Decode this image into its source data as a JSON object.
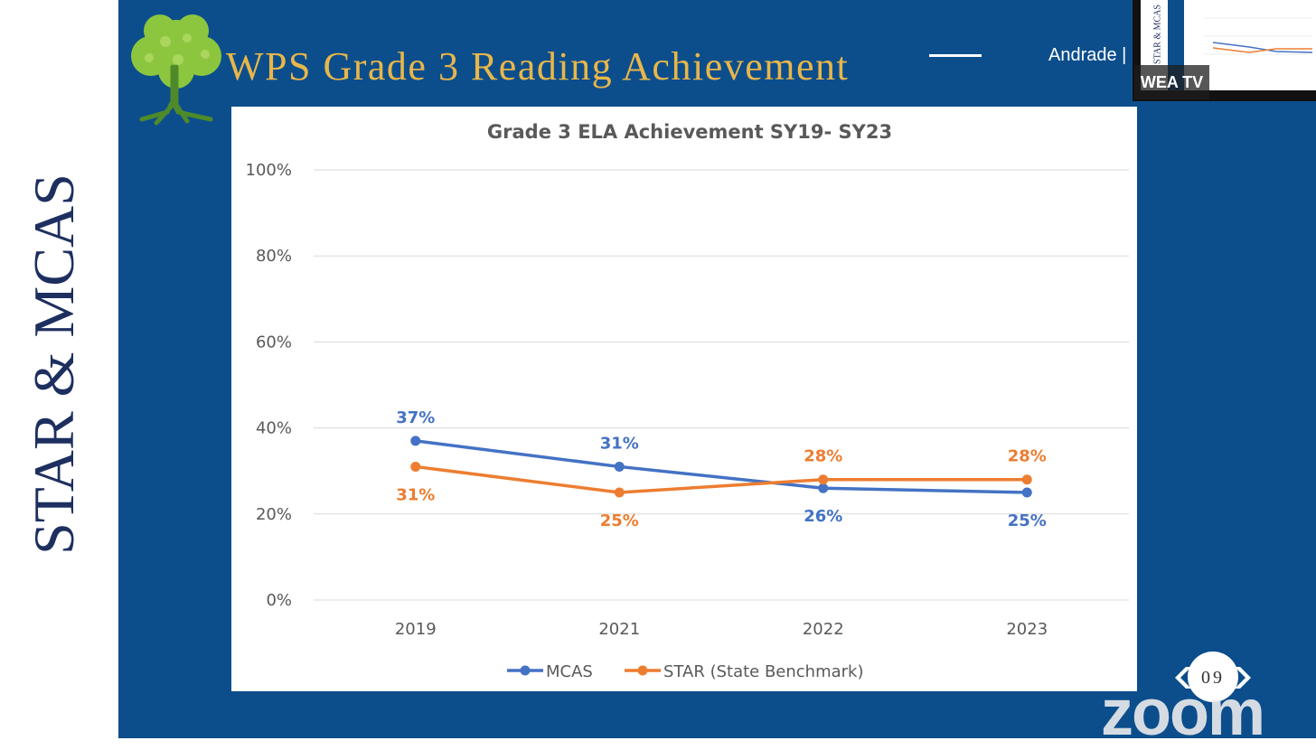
{
  "side_title": "STAR & MCAS",
  "slide_title": "WPS Grade 3 Reading Achievement",
  "presenter": "Andrade |",
  "thumbnail": {
    "label": "WEA TV",
    "side_text": "STAR & MCAS"
  },
  "page_number": "09",
  "watermark": "zoom",
  "colors": {
    "slide_bg": "#0c4e8c",
    "title": "#e8b64a",
    "mcas": "#4472c4",
    "star": "#ed7d31"
  },
  "chart_data": {
    "type": "line",
    "title": "Grade 3 ELA Achievement SY19- SY23",
    "categories": [
      "2019",
      "2021",
      "2022",
      "2023"
    ],
    "series": [
      {
        "name": "MCAS",
        "values": [
          37,
          31,
          26,
          25
        ],
        "labels": [
          "37%",
          "31%",
          "26%",
          "25%"
        ],
        "color": "#4472c4"
      },
      {
        "name": "STAR (State Benchmark)",
        "values": [
          31,
          25,
          28,
          28
        ],
        "labels": [
          "31%",
          "25%",
          "28%",
          "28%"
        ],
        "color": "#ed7d31"
      }
    ],
    "ylim": [
      0,
      100
    ],
    "yticks": [
      "0%",
      "20%",
      "40%",
      "60%",
      "80%",
      "100%"
    ],
    "grid": true,
    "legend": "bottom"
  }
}
